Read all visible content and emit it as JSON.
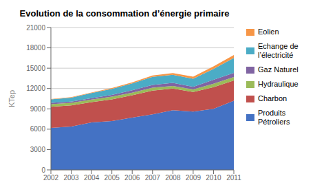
{
  "chart_data": {
    "type": "area",
    "stacked": true,
    "title": "Evolution de la consommation d’énergie primaire",
    "ylabel": "KTep",
    "x": [
      2002,
      2003,
      2004,
      2005,
      2006,
      2007,
      2008,
      2009,
      2010,
      2011
    ],
    "xlim": [
      2002,
      2011
    ],
    "xticks": [
      2002,
      2003,
      2004,
      2005,
      2006,
      2007,
      2008,
      2009,
      2010,
      2011
    ],
    "ylim": [
      0,
      21000
    ],
    "yticks": [
      0,
      3000,
      6000,
      9000,
      12000,
      15000,
      18000,
      21000
    ],
    "grid": true,
    "legend": "right",
    "series": [
      {
        "name": "Produits\nPétroliers",
        "color": "#4472C4",
        "values": [
          6200,
          6400,
          7000,
          7200,
          7700,
          8200,
          8800,
          8600,
          9000,
          10200
        ]
      },
      {
        "name": "Charbon",
        "color": "#C0504D",
        "values": [
          3100,
          3100,
          3000,
          3200,
          3300,
          3500,
          3200,
          2900,
          3200,
          3000
        ]
      },
      {
        "name": "Hydraulique",
        "color": "#9BBB59",
        "values": [
          400,
          380,
          380,
          400,
          400,
          420,
          380,
          360,
          500,
          500
        ]
      },
      {
        "name": "Gaz Naturel",
        "color": "#8064A2",
        "values": [
          200,
          180,
          200,
          250,
          350,
          400,
          450,
          380,
          600,
          600
        ]
      },
      {
        "name": "Echange de\nl’électricité",
        "color": "#4BACC6",
        "values": [
          500,
          600,
          750,
          900,
          1000,
          1200,
          1200,
          1200,
          1600,
          2200
        ]
      },
      {
        "name": "Eolien",
        "color": "#F79646",
        "values": [
          50,
          70,
          90,
          120,
          150,
          200,
          250,
          300,
          380,
          450
        ]
      }
    ]
  }
}
